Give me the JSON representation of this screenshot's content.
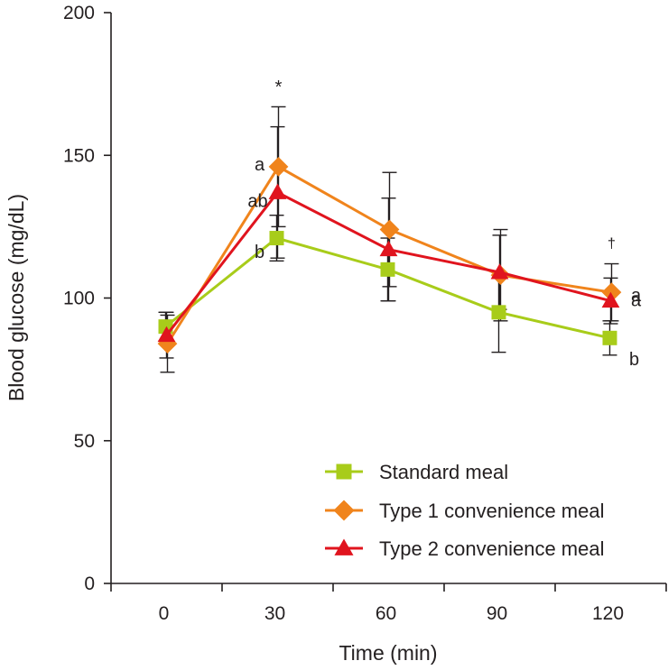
{
  "chart_data": {
    "type": "line",
    "title": "",
    "xlabel": "Time (min)",
    "ylabel": "Blood glucose (mg/dL)",
    "x": [
      0,
      30,
      60,
      90,
      120
    ],
    "xticks": [
      "0",
      "30",
      "60",
      "90",
      "120"
    ],
    "ylim": [
      0,
      200
    ],
    "yticks": [
      0,
      50,
      100,
      150,
      200
    ],
    "grid": false,
    "legend_position": "bottom-right",
    "series": [
      {
        "name": "Standard meal",
        "color": "#a8cc1a",
        "marker": "square",
        "values": [
          90,
          121,
          110,
          95,
          86
        ],
        "errors": [
          5,
          8,
          11,
          14,
          6
        ],
        "letters": [
          "",
          "b",
          "",
          "",
          "b"
        ]
      },
      {
        "name": "Type 1 convenience meal",
        "color": "#f0841c",
        "marker": "diamond",
        "values": [
          84,
          146,
          124,
          108,
          102
        ],
        "errors": [
          10,
          21,
          20,
          16,
          10
        ],
        "letters": [
          "",
          "a",
          "",
          "",
          "a"
        ]
      },
      {
        "name": "Type 2 convenience meal",
        "color": "#e0141e",
        "marker": "triangle",
        "values": [
          87,
          137,
          117,
          109,
          99
        ],
        "errors": [
          8,
          23,
          18,
          13,
          8
        ],
        "letters": [
          "",
          "ab",
          "",
          "",
          "a"
        ]
      }
    ],
    "annotations": [
      {
        "x": 30,
        "text": "*"
      },
      {
        "x": 120,
        "text": "†"
      }
    ]
  }
}
